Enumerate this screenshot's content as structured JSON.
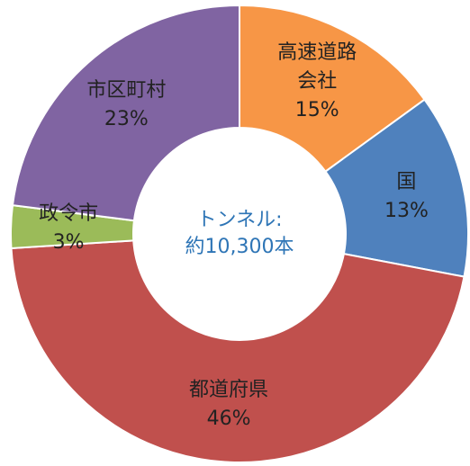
{
  "chart_data": {
    "type": "donut",
    "categories": [
      "高速道路会社",
      "国",
      "都道府県",
      "政令市",
      "市区町村"
    ],
    "values": [
      15,
      13,
      46,
      3,
      23
    ],
    "value_labels": [
      "15%",
      "13%",
      "46%",
      "3%",
      "23%"
    ],
    "colors": [
      "#f79646",
      "#4f81bd",
      "#c0504d",
      "#9bbb59",
      "#8064a2"
    ],
    "center_text": [
      "トンネル:",
      "約10,300本"
    ]
  }
}
